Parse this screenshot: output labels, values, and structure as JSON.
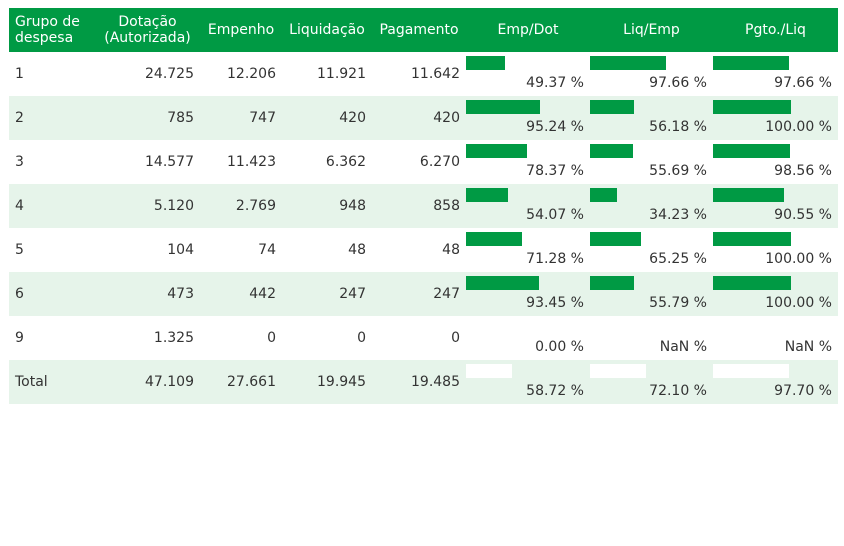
{
  "colors": {
    "header_bg": "#009a44",
    "bar": "#009a44",
    "row_alt": "#e6f4ea"
  },
  "headers": {
    "grupo": "Grupo de despesa",
    "dotacao": "Dotação (Autorizada)",
    "empenho": "Empenho",
    "liquidacao": "Liquidação",
    "pagamento": "Pagamento",
    "emp_dot": "Emp/Dot",
    "liq_emp": "Liq/Emp",
    "pgto_liq": "Pgto./Liq"
  },
  "rows": [
    {
      "grupo": "1",
      "dotacao": "24.725",
      "empenho": "12.206",
      "liquidacao": "11.921",
      "pagamento": "11.642",
      "emp_dot": {
        "label": "49.37 %",
        "value": 0.4937
      },
      "liq_emp": {
        "label": "97.66 %",
        "value": 0.9766
      },
      "pgto_liq": {
        "label": "97.66 %",
        "value": 0.9766
      }
    },
    {
      "grupo": "2",
      "dotacao": "785",
      "empenho": "747",
      "liquidacao": "420",
      "pagamento": "420",
      "emp_dot": {
        "label": "95.24 %",
        "value": 0.9524
      },
      "liq_emp": {
        "label": "56.18 %",
        "value": 0.5618
      },
      "pgto_liq": {
        "label": "100.00 %",
        "value": 1.0
      }
    },
    {
      "grupo": "3",
      "dotacao": "14.577",
      "empenho": "11.423",
      "liquidacao": "6.362",
      "pagamento": "6.270",
      "emp_dot": {
        "label": "78.37 %",
        "value": 0.7837
      },
      "liq_emp": {
        "label": "55.69 %",
        "value": 0.5569
      },
      "pgto_liq": {
        "label": "98.56 %",
        "value": 0.9856
      }
    },
    {
      "grupo": "4",
      "dotacao": "5.120",
      "empenho": "2.769",
      "liquidacao": "948",
      "pagamento": "858",
      "emp_dot": {
        "label": "54.07 %",
        "value": 0.5407
      },
      "liq_emp": {
        "label": "34.23 %",
        "value": 0.3423
      },
      "pgto_liq": {
        "label": "90.55 %",
        "value": 0.9055
      }
    },
    {
      "grupo": "5",
      "dotacao": "104",
      "empenho": "74",
      "liquidacao": "48",
      "pagamento": "48",
      "emp_dot": {
        "label": "71.28 %",
        "value": 0.7128
      },
      "liq_emp": {
        "label": "65.25 %",
        "value": 0.6525
      },
      "pgto_liq": {
        "label": "100.00 %",
        "value": 1.0
      }
    },
    {
      "grupo": "6",
      "dotacao": "473",
      "empenho": "442",
      "liquidacao": "247",
      "pagamento": "247",
      "emp_dot": {
        "label": "93.45 %",
        "value": 0.9345
      },
      "liq_emp": {
        "label": "55.79 %",
        "value": 0.5579
      },
      "pgto_liq": {
        "label": "100.00 %",
        "value": 1.0
      }
    },
    {
      "grupo": "9",
      "dotacao": "1.325",
      "empenho": "0",
      "liquidacao": "0",
      "pagamento": "0",
      "emp_dot": {
        "label": "0.00 %",
        "value": 0.0
      },
      "liq_emp": {
        "label": "NaN %",
        "value": 0.0
      },
      "pgto_liq": {
        "label": "NaN %",
        "value": 0.0
      }
    }
  ],
  "total": {
    "grupo": "Total",
    "dotacao": "47.109",
    "empenho": "27.661",
    "liquidacao": "19.945",
    "pagamento": "19.485",
    "emp_dot": {
      "label": "58.72 %",
      "value": 0.5872
    },
    "liq_emp": {
      "label": "72.10 %",
      "value": 0.721
    },
    "pgto_liq": {
      "label": "97.70 %",
      "value": 0.977
    }
  }
}
